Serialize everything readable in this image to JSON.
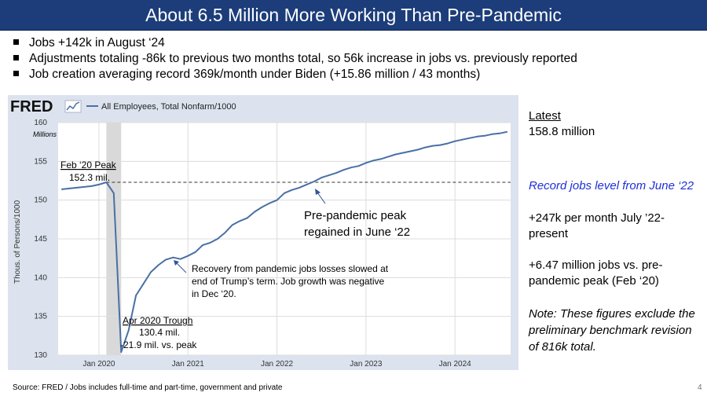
{
  "title": "About 6.5 Million More Working Than Pre-Pandemic",
  "bullets": [
    "Jobs +142k in August ‘24",
    "Adjustments totaling -86k to previous two months total, so 56k increase in jobs vs. previously reported",
    "Job creation averaging record 369k/month under Biden (+15.86 million / 43 months)"
  ],
  "chart": {
    "logo": "FRED",
    "legend": "All Employees, Total Nonfarm/1000",
    "unit_label": "Millions",
    "ylabel": "Thous. of Persons/1000",
    "annotations": {
      "feb_title": "Feb ‘20 Peak",
      "feb_value": "152.3 mil.",
      "apr_title": "Apr 2020 Trough",
      "apr_value": "130.4 mil.",
      "apr_delta": "-21.9 mil. vs. peak",
      "recovery_1": "Recovery from pandemic jobs losses slowed at",
      "recovery_2": "end of Trump’s term.  Job growth was negative",
      "recovery_3": "in Dec ‘20.",
      "regained_1": "Pre-pandemic peak",
      "regained_2": "regained in June ‘22"
    }
  },
  "chart_data": {
    "type": "line",
    "series": [
      {
        "name": "All Employees, Total Nonfarm/1000",
        "x": [
          "2019-08",
          "2019-09",
          "2019-10",
          "2019-11",
          "2019-12",
          "2020-01",
          "2020-02",
          "2020-03",
          "2020-04",
          "2020-05",
          "2020-06",
          "2020-07",
          "2020-08",
          "2020-09",
          "2020-10",
          "2020-11",
          "2020-12",
          "2021-01",
          "2021-02",
          "2021-03",
          "2021-04",
          "2021-05",
          "2021-06",
          "2021-07",
          "2021-08",
          "2021-09",
          "2021-10",
          "2021-11",
          "2021-12",
          "2022-01",
          "2022-02",
          "2022-03",
          "2022-04",
          "2022-05",
          "2022-06",
          "2022-07",
          "2022-08",
          "2022-09",
          "2022-10",
          "2022-11",
          "2022-12",
          "2023-01",
          "2023-02",
          "2023-03",
          "2023-04",
          "2023-05",
          "2023-06",
          "2023-07",
          "2023-08",
          "2023-09",
          "2023-10",
          "2023-11",
          "2023-12",
          "2024-01",
          "2024-02",
          "2024-03",
          "2024-04",
          "2024-05",
          "2024-06",
          "2024-07",
          "2024-08"
        ],
        "values": [
          151.4,
          151.5,
          151.6,
          151.7,
          151.8,
          152.0,
          152.3,
          150.9,
          130.4,
          133.2,
          137.7,
          139.2,
          140.7,
          141.6,
          142.3,
          142.6,
          142.4,
          142.8,
          143.3,
          144.2,
          144.5,
          145.0,
          145.8,
          146.8,
          147.3,
          147.7,
          148.5,
          149.1,
          149.6,
          150.0,
          150.9,
          151.3,
          151.6,
          152.0,
          152.4,
          152.9,
          153.2,
          153.5,
          153.9,
          154.2,
          154.4,
          154.8,
          155.1,
          155.3,
          155.6,
          155.9,
          156.1,
          156.3,
          156.5,
          156.8,
          157.0,
          157.1,
          157.3,
          157.6,
          157.8,
          158.0,
          158.2,
          158.3,
          158.5,
          158.6,
          158.8
        ]
      }
    ],
    "reference_line": 152.3,
    "shaded_period": [
      "2020-02",
      "2020-04"
    ],
    "ylim": [
      130,
      160
    ],
    "yticks": [
      130,
      135,
      140,
      145,
      150,
      155,
      160
    ],
    "xticks": [
      {
        "x": "2020-01",
        "label": "Jan 2020"
      },
      {
        "x": "2021-01",
        "label": "Jan 2021"
      },
      {
        "x": "2022-01",
        "label": "Jan 2022"
      },
      {
        "x": "2023-01",
        "label": "Jan 2023"
      },
      {
        "x": "2024-01",
        "label": "Jan 2024"
      }
    ],
    "xlabel": "",
    "ylabel": "Thous. of Persons/1000",
    "grid": true
  },
  "sidebar": {
    "latest_label": "Latest",
    "latest_value": "158.8 million",
    "record": "Record jobs level from June ‘22",
    "per_month_1": "+247k per month July ’22-",
    "per_month_2": "present",
    "vs_peak_1": "+6.47 million jobs vs. pre-",
    "vs_peak_2": "pandemic peak (Feb ‘20)",
    "note_1": "Note: These figures exclude the",
    "note_2": "preliminary benchmark revision",
    "note_3": "of 816k total."
  },
  "footer": {
    "source": "Source:  FRED / Jobs includes full-time and part-time, government and private",
    "page": "4"
  },
  "colors": {
    "title_bg": "#1c3d7a",
    "line": "#4a6fa5",
    "chart_bg": "#dce3ee",
    "plot_bg": "#ffffff",
    "shade": "#d9d9d9",
    "record_text": "#1f2fd6"
  }
}
